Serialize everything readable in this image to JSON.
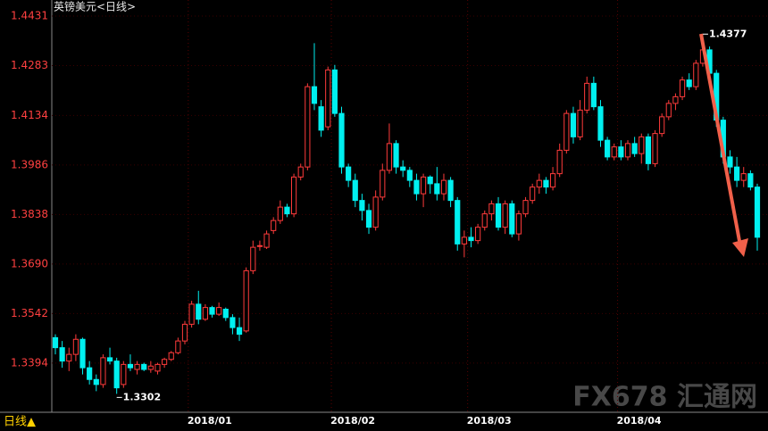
{
  "chart_data": {
    "type": "candlestick",
    "title": "英镑美元<日线>",
    "period_label": "日线▲",
    "watermark": "FX678 汇通网",
    "up_color": "#ff3b3b",
    "down_color": "#00f0f0",
    "ylim": [
      1.3247,
      1.4479
    ],
    "yticks": [
      {
        "value": 1.4431,
        "label": "1.4431"
      },
      {
        "value": 1.4283,
        "label": "1.4283"
      },
      {
        "value": 1.4134,
        "label": "1.4134"
      },
      {
        "value": 1.3986,
        "label": "1.3986"
      },
      {
        "value": 1.3838,
        "label": "1.3838"
      },
      {
        "value": 1.369,
        "label": "1.3690"
      },
      {
        "value": 1.3542,
        "label": "1.3542"
      },
      {
        "value": 1.3394,
        "label": "1.3394"
      }
    ],
    "xlim": [
      0,
      103
    ],
    "xticks": [
      {
        "value": 20,
        "label": "2018/01"
      },
      {
        "value": 41,
        "label": "2018/02"
      },
      {
        "value": 61,
        "label": "2018/03"
      },
      {
        "value": 83,
        "label": "2018/04"
      }
    ],
    "annotations": [
      {
        "text": "1.4377",
        "value": 1.4377
      },
      {
        "text": "1.3302",
        "value": 1.3302
      }
    ],
    "ohlc": [
      [
        1.347,
        1.348,
        1.342,
        1.344
      ],
      [
        1.344,
        1.346,
        1.338,
        1.34
      ],
      [
        1.34,
        1.344,
        1.337,
        1.342
      ],
      [
        1.342,
        1.348,
        1.34,
        1.3465
      ],
      [
        1.3465,
        1.347,
        1.336,
        1.338
      ],
      [
        1.338,
        1.34,
        1.333,
        1.3345
      ],
      [
        1.3345,
        1.336,
        1.331,
        1.333
      ],
      [
        1.333,
        1.342,
        1.332,
        1.341
      ],
      [
        1.341,
        1.344,
        1.339,
        1.34
      ],
      [
        1.34,
        1.341,
        1.3302,
        1.332
      ],
      [
        1.333,
        1.34,
        1.332,
        1.339
      ],
      [
        1.339,
        1.342,
        1.337,
        1.338
      ],
      [
        1.3375,
        1.34,
        1.336,
        1.339
      ],
      [
        1.339,
        1.3395,
        1.337,
        1.3375
      ],
      [
        1.3375,
        1.34,
        1.3365,
        1.3385
      ],
      [
        1.337,
        1.3395,
        1.336,
        1.339
      ],
      [
        1.339,
        1.341,
        1.338,
        1.3405
      ],
      [
        1.3405,
        1.343,
        1.34,
        1.3425
      ],
      [
        1.3425,
        1.347,
        1.342,
        1.346
      ],
      [
        1.346,
        1.352,
        1.345,
        1.351
      ],
      [
        1.351,
        1.358,
        1.35,
        1.357
      ],
      [
        1.357,
        1.361,
        1.351,
        1.3525
      ],
      [
        1.3525,
        1.357,
        1.352,
        1.356
      ],
      [
        1.356,
        1.3565,
        1.353,
        1.354
      ],
      [
        1.354,
        1.3575,
        1.3535,
        1.356
      ],
      [
        1.3555,
        1.356,
        1.352,
        1.353
      ],
      [
        1.353,
        1.354,
        1.348,
        1.35
      ],
      [
        1.35,
        1.353,
        1.346,
        1.348
      ],
      [
        1.349,
        1.368,
        1.3485,
        1.367
      ],
      [
        1.367,
        1.376,
        1.366,
        1.374
      ],
      [
        1.3745,
        1.376,
        1.373,
        1.3745
      ],
      [
        1.374,
        1.379,
        1.3735,
        1.378
      ],
      [
        1.379,
        1.383,
        1.378,
        1.382
      ],
      [
        1.382,
        1.388,
        1.381,
        1.386
      ],
      [
        1.386,
        1.387,
        1.383,
        1.384
      ],
      [
        1.384,
        1.396,
        1.383,
        1.395
      ],
      [
        1.395,
        1.399,
        1.394,
        1.398
      ],
      [
        1.398,
        1.423,
        1.397,
        1.422
      ],
      [
        1.422,
        1.435,
        1.415,
        1.417
      ],
      [
        1.416,
        1.418,
        1.407,
        1.409
      ],
      [
        1.41,
        1.428,
        1.409,
        1.427
      ],
      [
        1.427,
        1.4285,
        1.413,
        1.414
      ],
      [
        1.414,
        1.416,
        1.396,
        1.398
      ],
      [
        1.398,
        1.399,
        1.392,
        1.394
      ],
      [
        1.394,
        1.396,
        1.386,
        1.388
      ],
      [
        1.388,
        1.39,
        1.382,
        1.385
      ],
      [
        1.385,
        1.387,
        1.378,
        1.38
      ],
      [
        1.38,
        1.391,
        1.379,
        1.389
      ],
      [
        1.389,
        1.399,
        1.388,
        1.397
      ],
      [
        1.397,
        1.411,
        1.396,
        1.405
      ],
      [
        1.405,
        1.406,
        1.396,
        1.398
      ],
      [
        1.398,
        1.4,
        1.395,
        1.397
      ],
      [
        1.397,
        1.398,
        1.392,
        1.394
      ],
      [
        1.394,
        1.396,
        1.388,
        1.39
      ],
      [
        1.39,
        1.396,
        1.386,
        1.395
      ],
      [
        1.395,
        1.3955,
        1.39,
        1.393
      ],
      [
        1.393,
        1.398,
        1.388,
        1.39
      ],
      [
        1.39,
        1.396,
        1.388,
        1.394
      ],
      [
        1.394,
        1.395,
        1.386,
        1.388
      ],
      [
        1.388,
        1.389,
        1.373,
        1.375
      ],
      [
        1.375,
        1.379,
        1.371,
        1.377
      ],
      [
        1.377,
        1.38,
        1.374,
        1.376
      ],
      [
        1.376,
        1.381,
        1.375,
        1.38
      ],
      [
        1.38,
        1.385,
        1.379,
        1.384
      ],
      [
        1.384,
        1.388,
        1.382,
        1.387
      ],
      [
        1.387,
        1.389,
        1.379,
        1.38
      ],
      [
        1.38,
        1.388,
        1.378,
        1.387
      ],
      [
        1.387,
        1.388,
        1.377,
        1.378
      ],
      [
        1.378,
        1.385,
        1.376,
        1.384
      ],
      [
        1.384,
        1.389,
        1.383,
        1.388
      ],
      [
        1.388,
        1.393,
        1.387,
        1.392
      ],
      [
        1.392,
        1.396,
        1.39,
        1.394
      ],
      [
        1.394,
        1.395,
        1.39,
        1.392
      ],
      [
        1.392,
        1.398,
        1.391,
        1.396
      ],
      [
        1.396,
        1.405,
        1.395,
        1.403
      ],
      [
        1.403,
        1.415,
        1.402,
        1.414
      ],
      [
        1.414,
        1.416,
        1.405,
        1.407
      ],
      [
        1.407,
        1.418,
        1.406,
        1.415
      ],
      [
        1.415,
        1.425,
        1.414,
        1.423
      ],
      [
        1.423,
        1.425,
        1.415,
        1.416
      ],
      [
        1.416,
        1.418,
        1.404,
        1.406
      ],
      [
        1.406,
        1.407,
        1.4,
        1.401
      ],
      [
        1.401,
        1.405,
        1.4,
        1.404
      ],
      [
        1.404,
        1.406,
        1.4,
        1.401
      ],
      [
        1.401,
        1.406,
        1.4,
        1.405
      ],
      [
        1.405,
        1.407,
        1.401,
        1.402
      ],
      [
        1.402,
        1.408,
        1.399,
        1.407
      ],
      [
        1.407,
        1.408,
        1.397,
        1.399
      ],
      [
        1.399,
        1.409,
        1.398,
        1.408
      ],
      [
        1.408,
        1.414,
        1.407,
        1.413
      ],
      [
        1.413,
        1.418,
        1.412,
        1.417
      ],
      [
        1.417,
        1.42,
        1.415,
        1.419
      ],
      [
        1.419,
        1.425,
        1.418,
        1.424
      ],
      [
        1.424,
        1.426,
        1.421,
        1.422
      ],
      [
        1.422,
        1.43,
        1.421,
        1.429
      ],
      [
        1.429,
        1.4377,
        1.428,
        1.433
      ],
      [
        1.433,
        1.434,
        1.425,
        1.426
      ],
      [
        1.426,
        1.427,
        1.41,
        1.412
      ],
      [
        1.412,
        1.413,
        1.399,
        1.401
      ],
      [
        1.401,
        1.403,
        1.396,
        1.398
      ],
      [
        1.398,
        1.401,
        1.392,
        1.394
      ],
      [
        1.394,
        1.398,
        1.392,
        1.396
      ],
      [
        1.396,
        1.397,
        1.391,
        1.392
      ],
      [
        1.392,
        1.393,
        1.373,
        1.377
      ]
    ]
  }
}
